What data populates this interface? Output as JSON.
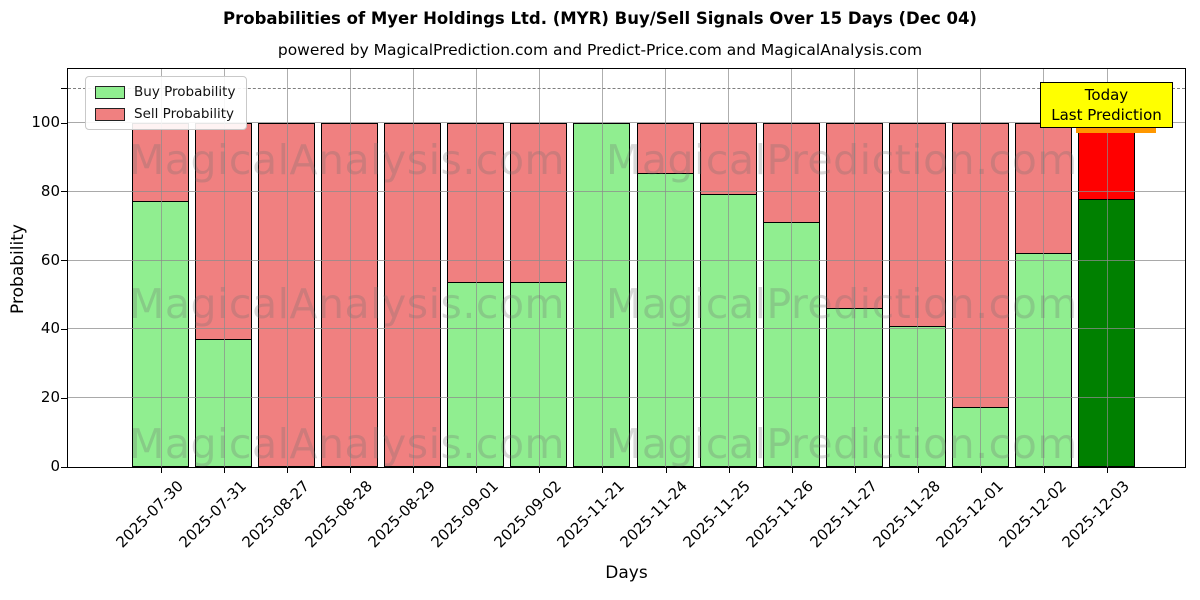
{
  "title": "Probabilities of Myer Holdings Ltd. (MYR) Buy/Sell Signals Over 15 Days (Dec 04)",
  "subtitle": "powered by MagicalPrediction.com and Predict-Price.com and MagicalAnalysis.com",
  "axes": {
    "ylabel": "Probability",
    "xlabel": "Days",
    "yticks": [
      "0",
      "20",
      "40",
      "60",
      "80",
      "100"
    ],
    "ytick_values": [
      0,
      20,
      40,
      60,
      80,
      100
    ],
    "ylim": [
      0,
      116
    ],
    "dashed_line_y": 110,
    "grid": true
  },
  "legend": {
    "position": "upper left",
    "items": [
      {
        "label": "Buy Probability",
        "color": "#90EE90"
      },
      {
        "label": "Sell Probability",
        "color": "#F08080"
      }
    ]
  },
  "annotation": {
    "line1": "Today",
    "line2": "Last Prediction",
    "bg_color": "#FFFF00",
    "shadow_color": "#FF9800",
    "border_color": "#000000"
  },
  "watermarks": {
    "left_text": "MagicalAnalysis.com",
    "right_text": "MagicalPrediction.com"
  },
  "chart_data": {
    "type": "bar",
    "stacked": true,
    "title": "Probabilities of Myer Holdings Ltd. (MYR) Buy/Sell Signals Over 15 Days (Dec 04)",
    "xlabel": "Days",
    "ylabel": "Probability",
    "ylim": [
      0,
      116
    ],
    "categories": [
      "2025-07-30",
      "2025-07-31",
      "2025-08-27",
      "2025-08-28",
      "2025-08-29",
      "2025-09-01",
      "2025-09-02",
      "2025-11-21",
      "2025-11-24",
      "2025-11-25",
      "2025-11-26",
      "2025-11-27",
      "2025-11-28",
      "2025-12-01",
      "2025-12-02",
      "2025-12-03"
    ],
    "series": [
      {
        "name": "Buy Probability",
        "color": "#90EE90",
        "values": [
          77.5,
          37.5,
          0,
          0,
          0,
          54,
          54,
          100,
          85.5,
          79.5,
          71.5,
          46.5,
          41,
          17.5,
          62.5,
          78
        ]
      },
      {
        "name": "Sell Probability",
        "color": "#F08080",
        "values": [
          22.5,
          62.5,
          100,
          100,
          100,
          46,
          46,
          0,
          14.5,
          20.5,
          28.5,
          53.5,
          59,
          82.5,
          37.5,
          22
        ]
      }
    ],
    "today_index": 15,
    "today_colors": {
      "buy": "#008000",
      "sell": "#FF0000"
    },
    "bar_edge_color": "#000000",
    "legend_position": "upper left"
  }
}
